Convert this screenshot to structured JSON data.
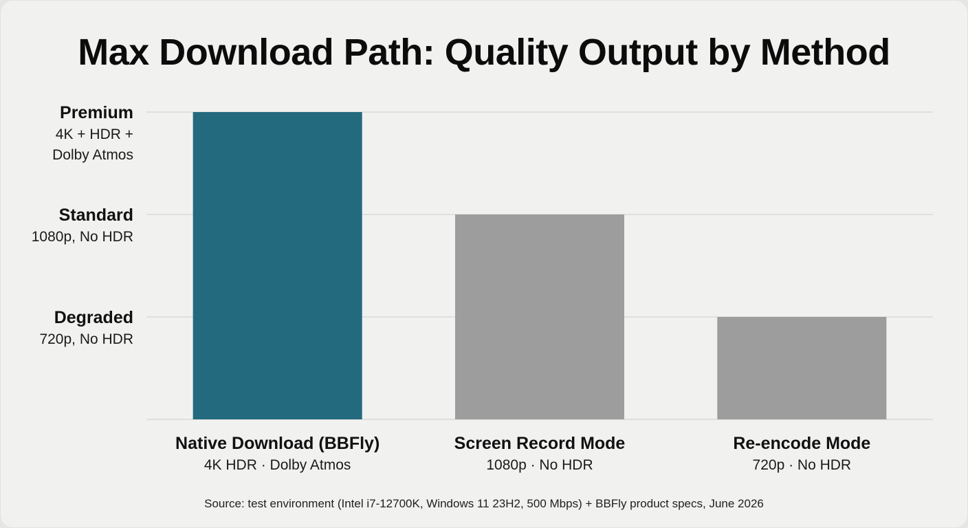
{
  "chart_data": {
    "type": "bar",
    "title": "Max Download Path: Quality Output by Method",
    "categories": [
      "Native Download (BBFly)",
      "Screen Record Mode",
      "Re-encode Mode"
    ],
    "category_sublabels": [
      "4K HDR · Dolby Atmos",
      "1080p · No HDR",
      "720p · No HDR"
    ],
    "values": [
      3,
      2,
      1
    ],
    "ylim": [
      0,
      3
    ],
    "y_levels": [
      {
        "value": 3,
        "name": "Premium",
        "detail": [
          "4K + HDR +",
          "Dolby Atmos"
        ]
      },
      {
        "value": 2,
        "name": "Standard",
        "detail": [
          "1080p, No HDR"
        ]
      },
      {
        "value": 1,
        "name": "Degraded",
        "detail": [
          "720p, No HDR"
        ]
      }
    ],
    "colors": [
      "#236a7e",
      "#9d9d9d",
      "#9d9d9d"
    ],
    "grid": true,
    "source": "Source: test environment (Intel i7-12700K, Windows 11 23H2, 500 Mbps) + BBFly product specs, June 2026"
  }
}
